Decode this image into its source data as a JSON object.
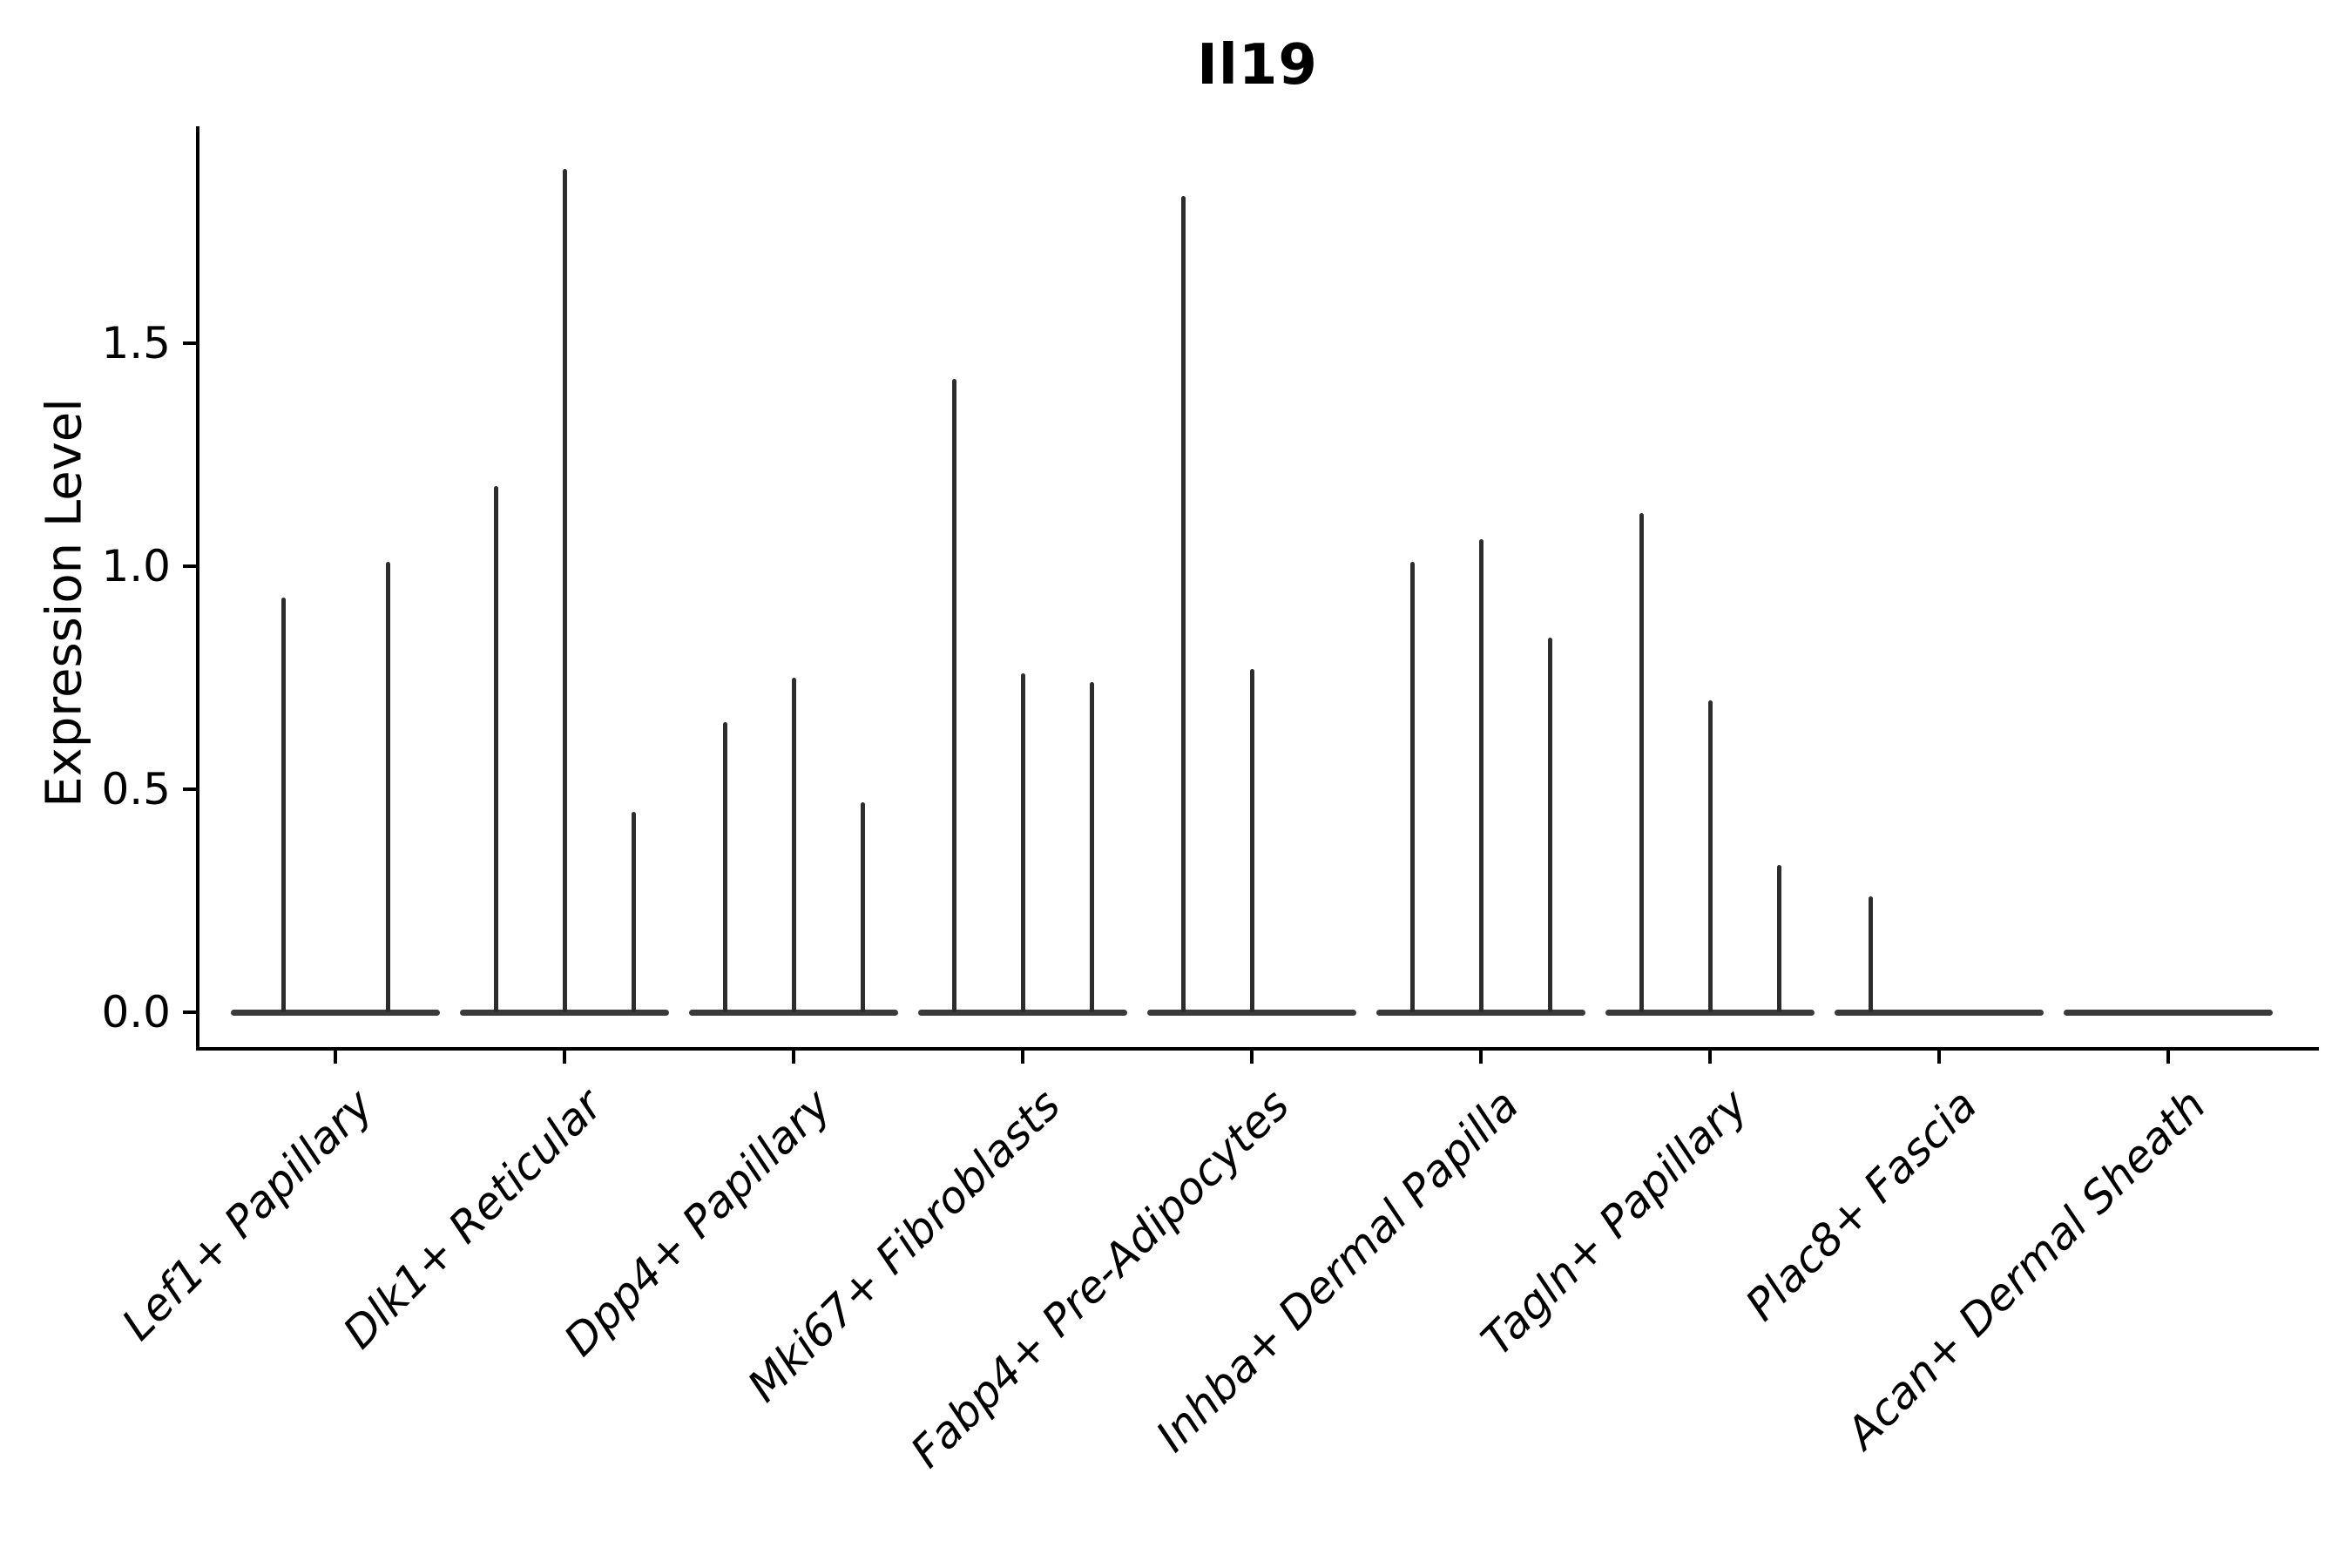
{
  "figure": {
    "title": "Il19",
    "ylabel": "Expression Level"
  },
  "chart_data": {
    "type": "violin",
    "title": "Il19",
    "subtitle": "",
    "xlabel": "",
    "ylabel": "Expression Level",
    "ylim": [
      0,
      1.98
    ],
    "yticks": [
      0.0,
      0.5,
      1.0,
      1.5
    ],
    "grid": false,
    "legend_position": "none",
    "categories": [
      "Lef1+ Papillary",
      "Dlk1+ Reticular",
      "Dpp4+ Papillary",
      "Mki67+ Fibroblasts",
      "Fabp4+ Pre-Adipocytes",
      "Inhba+ Dermal Papilla",
      "Tagln+ Papillary",
      "Plac8+ Fascia",
      "Acan+ Dermal Sheath"
    ],
    "groups": [
      {
        "label": "Lef1+ Papillary",
        "violin_max_values": [
          0.93,
          1.01
        ]
      },
      {
        "label": "Dlk1+ Reticular",
        "violin_max_values": [
          1.18,
          1.89,
          0.45
        ]
      },
      {
        "label": "Dpp4+ Papillary",
        "violin_max_values": [
          0.65,
          0.75,
          0.47
        ]
      },
      {
        "label": "Mki67+ Fibroblasts",
        "violin_max_values": [
          1.42,
          0.76,
          0.74
        ]
      },
      {
        "label": "Fabp4+ Pre-Adipocytes",
        "violin_max_values": [
          1.83,
          0.77,
          0.0
        ]
      },
      {
        "label": "Inhba+ Dermal Papilla",
        "violin_max_values": [
          1.01,
          1.06,
          0.84
        ]
      },
      {
        "label": "Tagln+ Papillary",
        "violin_max_values": [
          1.12,
          0.7,
          0.33
        ]
      },
      {
        "label": "Plac8+ Fascia",
        "violin_max_values": [
          0.26,
          0.0,
          0.0
        ]
      },
      {
        "label": "Acan+ Dermal Sheath",
        "violin_max_values": [
          0.0,
          0.0,
          0.0
        ]
      }
    ],
    "colors": {
      "spike": "#2d2d2d",
      "baseline": "#3a3a3a",
      "axis": "#000000",
      "text": "#000000",
      "background": "#ffffff"
    }
  }
}
